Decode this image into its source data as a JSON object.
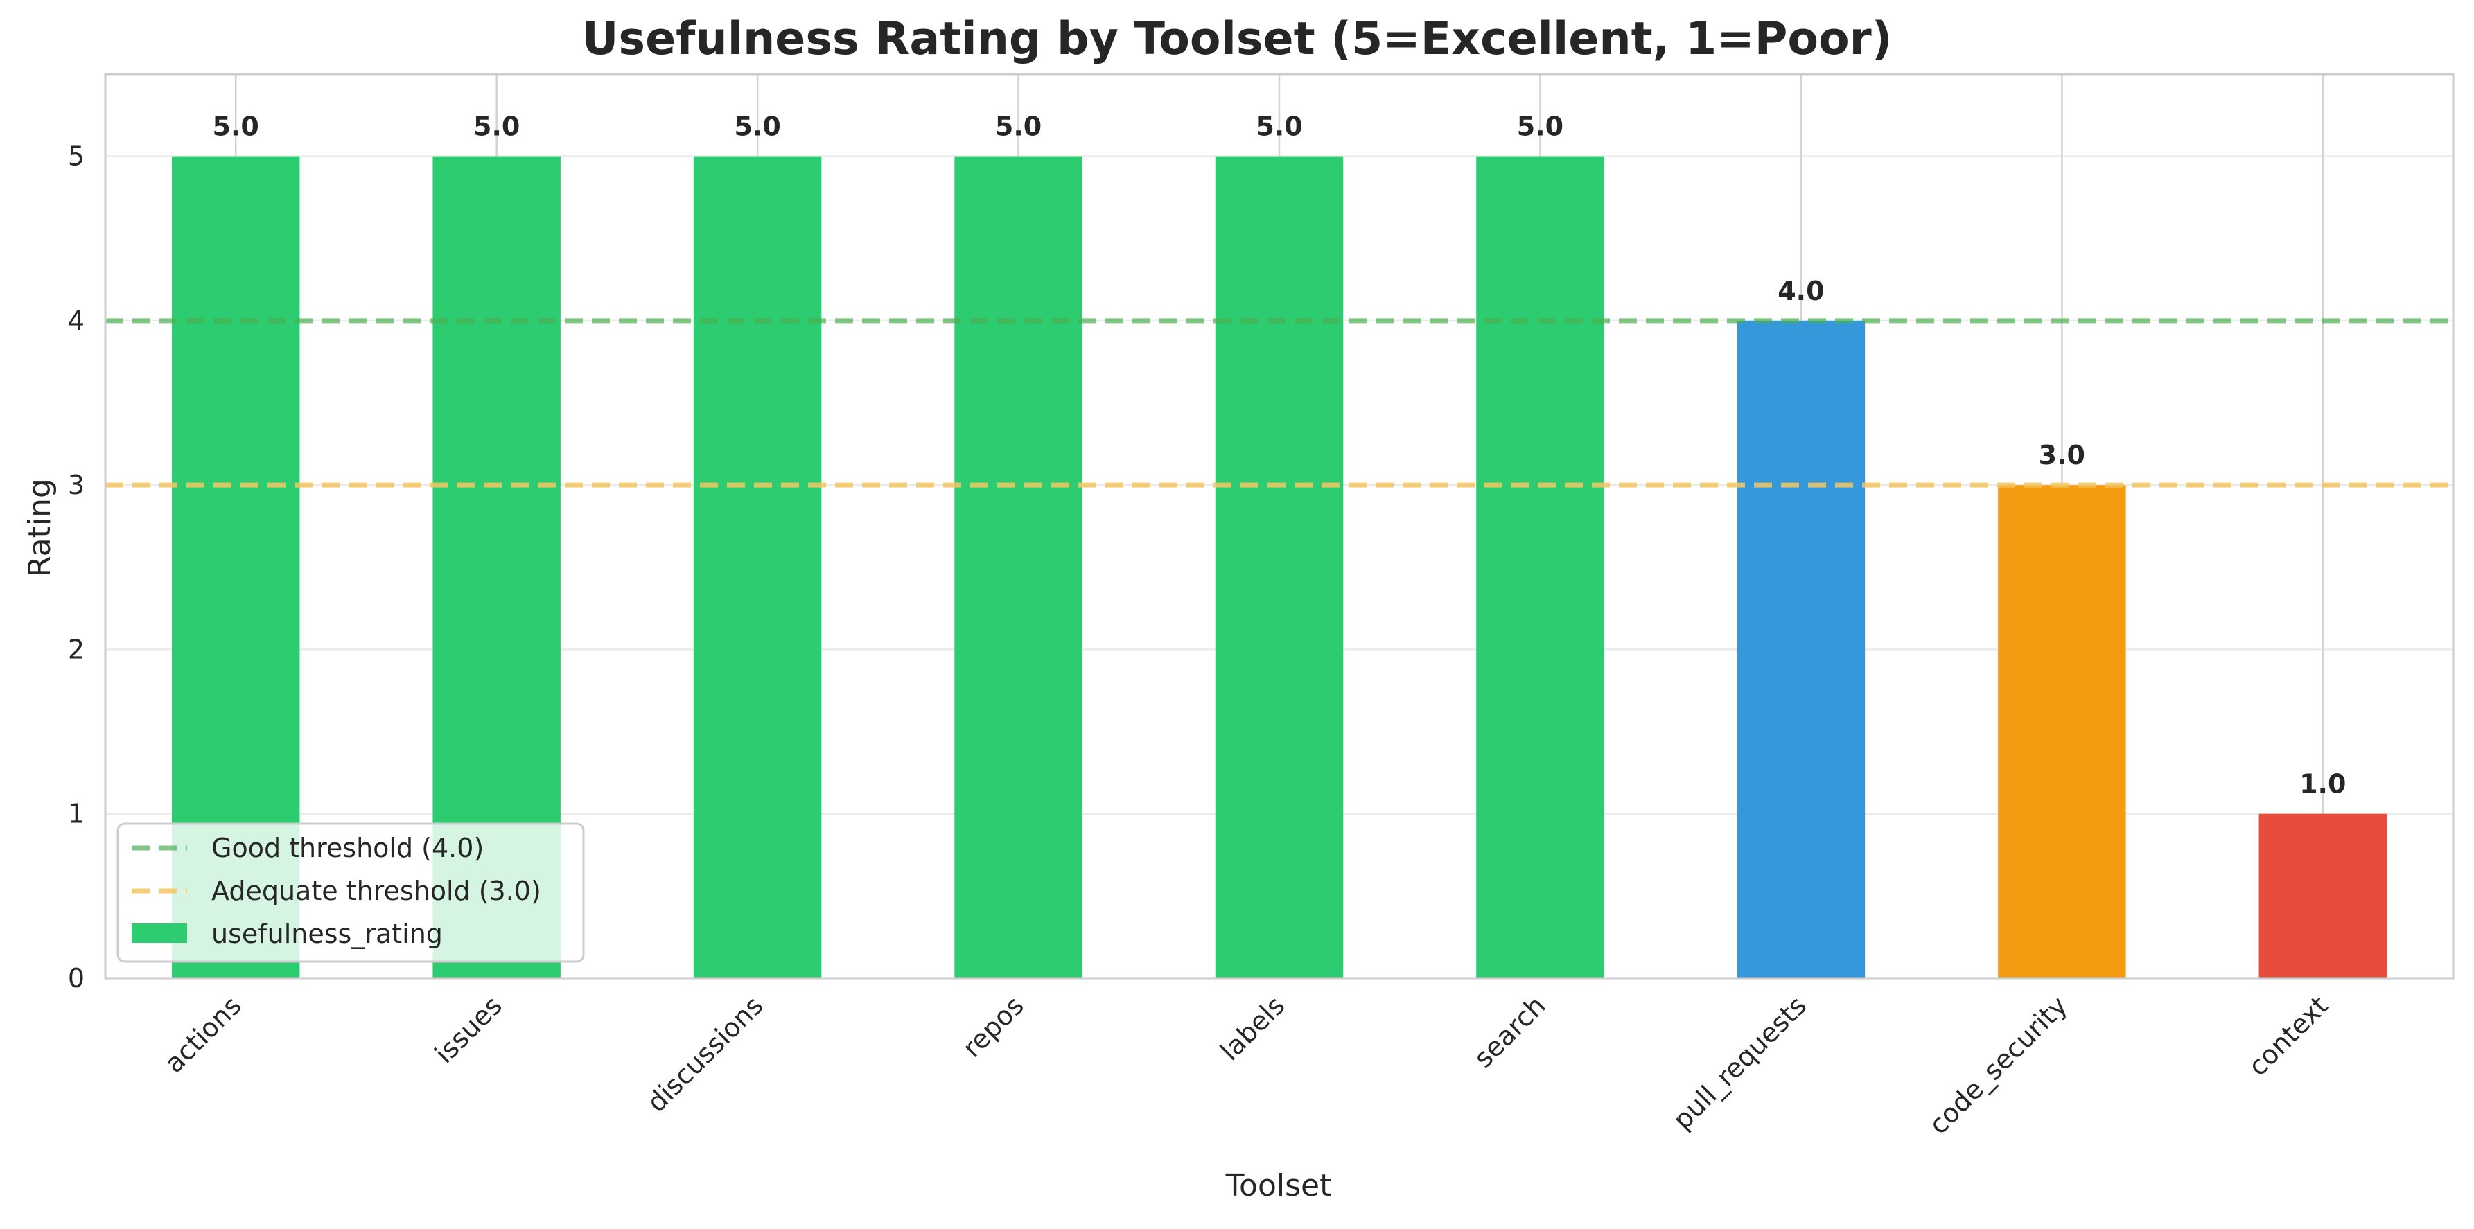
{
  "chart_data": {
    "type": "bar",
    "title": "Usefulness Rating by Toolset (5=Excellent, 1=Poor)",
    "xlabel": "Toolset",
    "ylabel": "Rating",
    "ylim": [
      0,
      5.5
    ],
    "yticks": [
      0,
      1,
      2,
      3,
      4,
      5
    ],
    "grid": true,
    "categories": [
      "actions",
      "issues",
      "discussions",
      "repos",
      "labels",
      "search",
      "pull_requests",
      "code_security",
      "context"
    ],
    "series": [
      {
        "name": "usefulness_rating",
        "values": [
          5.0,
          5.0,
          5.0,
          5.0,
          5.0,
          5.0,
          4.0,
          3.0,
          1.0
        ],
        "data_labels": [
          "5.0",
          "5.0",
          "5.0",
          "5.0",
          "5.0",
          "5.0",
          "4.0",
          "3.0",
          "1.0"
        ],
        "colors": [
          "#2ecc71",
          "#2ecc71",
          "#2ecc71",
          "#2ecc71",
          "#2ecc71",
          "#2ecc71",
          "#3498db",
          "#f39c12",
          "#e74c3c"
        ]
      }
    ],
    "reference_lines": [
      {
        "name": "Good threshold (4.0)",
        "value": 4.0,
        "color": "#4caf50",
        "style": "dashed"
      },
      {
        "name": "Adequate threshold (3.0)",
        "value": 3.0,
        "color": "#f6c560",
        "style": "dashed"
      }
    ],
    "legend": {
      "position": "lower-left",
      "entries": [
        "Good threshold (4.0)",
        "Adequate threshold (3.0)",
        "usefulness_rating"
      ]
    }
  }
}
